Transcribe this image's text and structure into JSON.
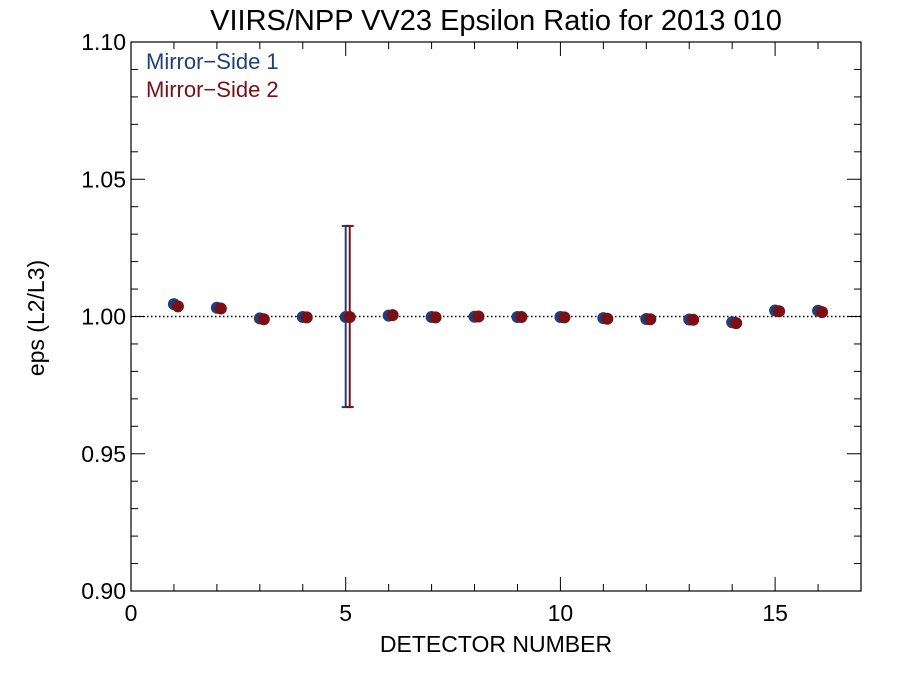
{
  "chart_data": {
    "type": "scatter",
    "title": "VIIRS/NPP VV23 Epsilon Ratio for 2013 010",
    "xlabel": "DETECTOR NUMBER",
    "ylabel": "eps (L2/L3)",
    "xlim": [
      0,
      17
    ],
    "ylim": [
      0.9,
      1.1
    ],
    "x_ticks": [
      0,
      5,
      10,
      15
    ],
    "x_tick_labels": [
      "0",
      "5",
      "10",
      "15"
    ],
    "y_ticks": [
      0.9,
      0.95,
      1.0,
      1.05,
      1.1
    ],
    "y_tick_labels": [
      "0.90",
      "0.95",
      "1.00",
      "1.05",
      "1.10"
    ],
    "reference_line": 1.0,
    "legend_position": "top-left",
    "series": [
      {
        "name": "Mirror−Side 1",
        "color": "#1f3f7a",
        "x": [
          1,
          2,
          3,
          4,
          5,
          6,
          7,
          8,
          9,
          10,
          11,
          12,
          13,
          14,
          15,
          16
        ],
        "y": [
          1.0045,
          1.0032,
          0.9993,
          0.9998,
          0.9998,
          1.0003,
          0.9998,
          0.9999,
          0.9998,
          0.9998,
          0.9994,
          0.9991,
          0.9989,
          0.9979,
          1.0022,
          1.0021
        ],
        "error_bars": [
          {
            "x": 5,
            "low": 0.967,
            "high": 1.033
          }
        ]
      },
      {
        "name": "Mirror−Side 2",
        "color": "#7a0f14",
        "x": [
          1,
          2,
          3,
          4,
          5,
          6,
          7,
          8,
          9,
          10,
          11,
          12,
          13,
          14,
          15,
          16
        ],
        "y": [
          1.0037,
          1.0029,
          0.999,
          0.9997,
          0.9998,
          1.0005,
          0.9997,
          1.0,
          0.9998,
          0.9997,
          0.9992,
          0.999,
          0.9988,
          0.9976,
          1.0019,
          1.0016
        ],
        "error_bars": [
          {
            "x": 5,
            "low": 0.967,
            "high": 1.033
          }
        ]
      }
    ]
  }
}
